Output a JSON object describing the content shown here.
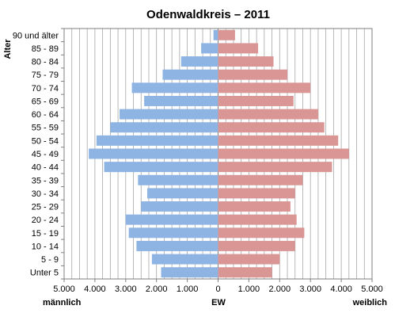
{
  "chart_data": {
    "type": "bar",
    "orientation": "horizontal-population-pyramid",
    "title": "Odenwaldkreis – 2011",
    "ylabel": "Alter",
    "xlabel": "EW",
    "left_label": "männlich",
    "right_label": "weiblich",
    "categories": [
      "90 und älter",
      "85 - 89",
      "80 - 84",
      "75 - 79",
      "70 - 74",
      "65 - 69",
      "60 - 64",
      "55 - 59",
      "50 - 54",
      "45 - 49",
      "40 - 44",
      "35 - 39",
      "30 - 34",
      "25 - 29",
      "20 - 24",
      "15 - 19",
      "10 - 14",
      "5 - 9",
      "Unter 5"
    ],
    "series": [
      {
        "values": [
          150,
          550,
          1200,
          1800,
          2800,
          2400,
          3200,
          3500,
          3950,
          4200,
          3700,
          2600,
          2300,
          2500,
          3000,
          2900,
          2650,
          2150,
          1850
        ]
      },
      {
        "values": [
          550,
          1300,
          1800,
          2250,
          3000,
          2450,
          3250,
          3450,
          3900,
          4250,
          3700,
          2750,
          2500,
          2350,
          2550,
          2800,
          2500,
          2000,
          1750
        ]
      }
    ],
    "xlim": [
      -5000,
      5000
    ],
    "xticks": [
      -5000,
      -4000,
      -3000,
      -2000,
      -1000,
      0,
      1000,
      2000,
      3000,
      4000,
      5000
    ],
    "xtick_labels": [
      "5.000",
      "4.000",
      "3.000",
      "2.000",
      "1.000",
      "0",
      "1.000",
      "2.000",
      "3.000",
      "4.000",
      "5.000"
    ],
    "grid": true,
    "colors": {
      "male": "#8db4e2",
      "female": "#da9694",
      "grid": "#a6a6a6",
      "axis": "#7f7f7f"
    }
  }
}
